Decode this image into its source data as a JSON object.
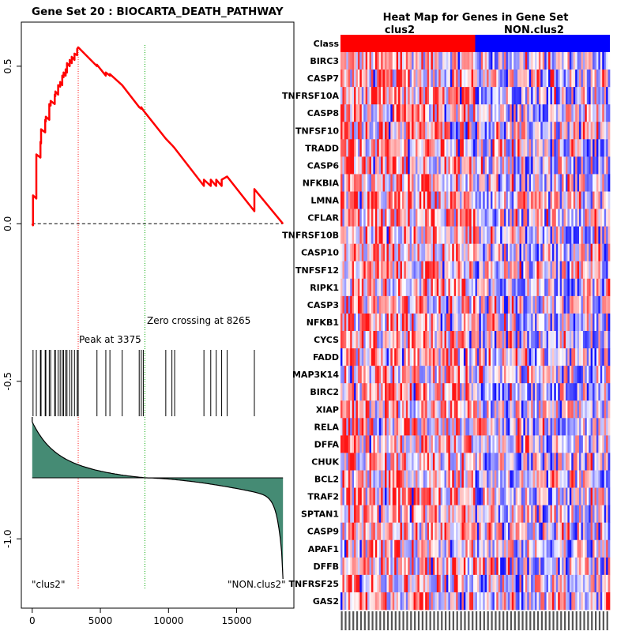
{
  "gsea_panel": {
    "title": "Gene Set  20 : BIOCARTA_DEATH_PATHWAY",
    "peak_label": "Peak at 3375",
    "zero_label": "Zero crossing at 8265",
    "left_label": "\"clus2\"",
    "right_label": "\"NON.clus2\"",
    "colors": {
      "es_line": "#ff0000",
      "peak_line": "#ff0000",
      "zero_line": "#00aa00",
      "fill": "#458b74"
    }
  },
  "chart_data": [
    {
      "type": "line",
      "title": "Gene Set  20 : BIOCARTA_DEATH_PATHWAY",
      "xlabel": "",
      "ylabel": "",
      "xlim": [
        -800,
        19200
      ],
      "ylim": [
        -1.22,
        0.64
      ],
      "x_ticks": [
        0,
        5000,
        10000,
        15000
      ],
      "x_tick_labels": [
        "0",
        "5000",
        "10000",
        "15000"
      ],
      "y_ticks": [
        0.5,
        0.0,
        -0.5,
        -1.0
      ],
      "y_tick_labels": [
        "0.5",
        "0.0",
        "-0.5",
        "-1.0"
      ],
      "peak_x": 3375,
      "zero_crossing_x": 8265,
      "hit_positions": [
        60,
        300,
        600,
        650,
        950,
        1000,
        1250,
        1350,
        1650,
        1700,
        1900,
        2050,
        2200,
        2300,
        2450,
        2550,
        2750,
        2900,
        3100,
        3300,
        3375,
        4750,
        5400,
        5700,
        6600,
        7850,
        8000,
        8150,
        9800,
        10250,
        10450,
        12600,
        13100,
        13500,
        13900,
        14300,
        16300
      ],
      "series": [
        {
          "name": "Enrichment score",
          "x": [
            0,
            60,
            60,
            300,
            300,
            600,
            600,
            650,
            650,
            950,
            950,
            1000,
            1000,
            1250,
            1250,
            1350,
            1350,
            1650,
            1650,
            1700,
            1700,
            1900,
            1900,
            2050,
            2050,
            2200,
            2200,
            2300,
            2300,
            2450,
            2450,
            2550,
            2550,
            2750,
            2750,
            2900,
            2900,
            3100,
            3100,
            3300,
            3300,
            3375,
            3375,
            4750,
            4750,
            5400,
            5400,
            5700,
            5700,
            6600,
            6600,
            7850,
            7850,
            8000,
            8000,
            8150,
            8150,
            9800,
            9800,
            10250,
            10250,
            10450,
            10450,
            12600,
            12600,
            13100,
            13100,
            13500,
            13500,
            13900,
            13900,
            14300,
            14300,
            16300,
            16300,
            18400
          ],
          "y": [
            0.0,
            -0.005,
            0.09,
            0.08,
            0.22,
            0.21,
            0.26,
            0.255,
            0.3,
            0.29,
            0.33,
            0.325,
            0.34,
            0.33,
            0.38,
            0.375,
            0.39,
            0.38,
            0.41,
            0.405,
            0.42,
            0.41,
            0.44,
            0.435,
            0.45,
            0.44,
            0.47,
            0.465,
            0.48,
            0.47,
            0.49,
            0.48,
            0.51,
            0.5,
            0.52,
            0.51,
            0.53,
            0.52,
            0.54,
            0.535,
            0.555,
            0.56,
            0.56,
            0.5,
            0.505,
            0.47,
            0.48,
            0.47,
            0.475,
            0.44,
            0.44,
            0.37,
            0.37,
            0.365,
            0.37,
            0.36,
            0.36,
            0.27,
            0.27,
            0.25,
            0.25,
            0.24,
            0.24,
            0.12,
            0.14,
            0.12,
            0.14,
            0.12,
            0.14,
            0.12,
            0.14,
            0.15,
            0.15,
            0.04,
            0.11,
            0.0
          ]
        }
      ]
    },
    {
      "type": "heatmap",
      "title": "Heat Map for Genes in Gene Set",
      "class_row_label": "Class",
      "class_labels": [
        "clus2",
        "NON.clus2"
      ],
      "class_colors": [
        "#ff0000",
        "#0000ff"
      ],
      "rows": [
        "BIRC3",
        "CASP7",
        "TNFRSF10A",
        "CASP8",
        "TNFSF10",
        "TRADD",
        "CASP6",
        "NFKBIA",
        "LMNA",
        "CFLAR",
        "TNFRSF10B",
        "CASP10",
        "TNFSF12",
        "RIPK1",
        "CASP3",
        "NFKB1",
        "CYCS",
        "FADD",
        "MAP3K14",
        "BIRC2",
        "XIAP",
        "RELA",
        "DFFA",
        "CHUK",
        "BCL2",
        "TRAF2",
        "SPTAN1",
        "CASP9",
        "APAF1",
        "DFFB",
        "TNFRSF25",
        "GAS2"
      ],
      "n_samples": 140,
      "n_class1": 70
    }
  ]
}
